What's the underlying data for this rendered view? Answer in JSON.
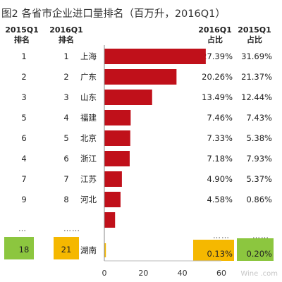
{
  "title": "图2 各省市企业进口量排名（百万升，2016Q1）",
  "headers": {
    "rank2015_line1": "2015Q1",
    "rank2015_line2": "排名",
    "rank2016_line1": "2016Q1",
    "rank2016_line2": "排名",
    "share2016_line1": "2016Q1",
    "share2016_line2": "占比",
    "share2015_line1": "2015Q1",
    "share2015_line2": "占比"
  },
  "rows": [
    {
      "rank2015": "1",
      "rank2016": "1",
      "province": "上海",
      "share2016": "27.39%",
      "share2015": "31.69%"
    },
    {
      "rank2015": "2",
      "rank2016": "2",
      "province": "广东",
      "share2016": "20.26%",
      "share2015": "21.37%"
    },
    {
      "rank2015": "3",
      "rank2016": "3",
      "province": "山东",
      "share2016": "13.49%",
      "share2015": "12.44%"
    },
    {
      "rank2015": "5",
      "rank2016": "4",
      "province": "福建",
      "share2016": "7.46%",
      "share2015": "7.43%"
    },
    {
      "rank2015": "6",
      "rank2016": "5",
      "province": "北京",
      "share2016": "7.33%",
      "share2015": "5.38%"
    },
    {
      "rank2015": "4",
      "rank2016": "6",
      "province": "浙江",
      "share2016": "7.18%",
      "share2015": "7.93%"
    },
    {
      "rank2015": "7",
      "rank2016": "7",
      "province": "江苏",
      "share2016": "4.90%",
      "share2015": "5.37%"
    },
    {
      "rank2015": "9",
      "rank2016": "8",
      "province": "河北",
      "share2016": "4.58%",
      "share2015": "0.86%"
    }
  ],
  "ellipsis": {
    "rank2015": "…",
    "rank2016": "……",
    "share2016": "……",
    "share2015": "……"
  },
  "highlight": {
    "rank2015": "18",
    "rank2016": "21",
    "province": "湖南",
    "share2016": "0.13%",
    "share2015": "0.20%"
  },
  "watermark": "Wine .com",
  "colors": {
    "bar": "#c0101a",
    "highlight_orange": "#f5b800",
    "highlight_green": "#8cc63f"
  },
  "chart_data": {
    "type": "bar",
    "orientation": "horizontal",
    "categories": [
      "上海",
      "广东",
      "山东",
      "福建",
      "北京",
      "浙江",
      "江苏",
      "河北",
      "……",
      "湖南"
    ],
    "values": [
      52,
      37,
      24.5,
      13.5,
      13.3,
      13,
      9,
      8.3,
      5.5,
      0.8
    ],
    "xlim": [
      0,
      60
    ],
    "xticks": [
      0,
      20,
      40,
      60
    ],
    "xlabel": "",
    "title": "图2 各省市企业进口量排名（百万升，2016Q1）"
  }
}
